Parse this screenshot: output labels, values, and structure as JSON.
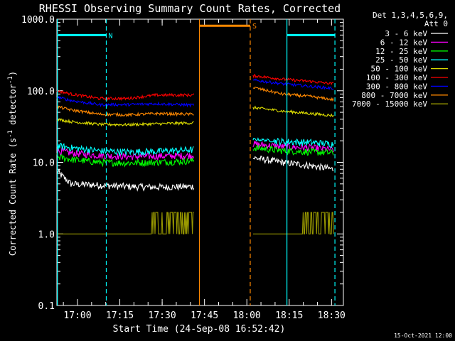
{
  "chart_data": {
    "type": "line",
    "title": "RHESSI Observing Summary Count Rates, Corrected",
    "xlabel": "Start Time (24-Sep-08 16:52:42)",
    "ylabel_main": "Corrected Count Rate (s",
    "ylabel_sup1": "-1",
    "ylabel_mid": " detector",
    "ylabel_sup2": "-1",
    "ylabel_end": ")",
    "yscale": "log",
    "ylim": [
      0.1,
      1000
    ],
    "x_unit": "minutes since 16:52:42",
    "xlim": [
      0,
      101.5
    ],
    "x_ticks": [
      {
        "t": 7.3,
        "label": "17:00"
      },
      {
        "t": 22.3,
        "label": "17:15"
      },
      {
        "t": 37.3,
        "label": "17:30"
      },
      {
        "t": 52.3,
        "label": "17:45"
      },
      {
        "t": 67.3,
        "label": "18:00"
      },
      {
        "t": 82.3,
        "label": "18:15"
      },
      {
        "t": 97.3,
        "label": "18:30"
      }
    ],
    "y_ticks": [
      {
        "v": 0.1,
        "label": "0.1"
      },
      {
        "v": 1,
        "label": "1.0"
      },
      {
        "v": 10,
        "label": "10.0"
      },
      {
        "v": 100,
        "label": "100.0"
      },
      {
        "v": 1000,
        "label": "1000.0"
      }
    ],
    "legend": {
      "header1": "Det 1,3,4,5,6,9,",
      "header2": "Att 0",
      "placement": "right"
    },
    "segments": [
      [
        0,
        48.5
      ],
      [
        69.5,
        98
      ]
    ],
    "series": [
      {
        "name": "3 - 6 keV",
        "color": "#ffffff",
        "values": [
          [
            0,
            7.5
          ],
          [
            5,
            5.0
          ],
          [
            15,
            4.8
          ],
          [
            25,
            4.6
          ],
          [
            35,
            4.5
          ],
          [
            48,
            4.6
          ],
          [
            70,
            11.5
          ],
          [
            80,
            10.0
          ],
          [
            90,
            9.0
          ],
          [
            98,
            8.0
          ]
        ]
      },
      {
        "name": "6 - 12 keV",
        "color": "#ff00ff",
        "values": [
          [
            0,
            14.5
          ],
          [
            5,
            13.5
          ],
          [
            15,
            12.5
          ],
          [
            25,
            12.0
          ],
          [
            35,
            12.2
          ],
          [
            48,
            12.5
          ],
          [
            70,
            18.0
          ],
          [
            80,
            16.5
          ],
          [
            90,
            16.0
          ],
          [
            98,
            15.0
          ]
        ]
      },
      {
        "name": "12 - 25 keV",
        "color": "#00ff00",
        "values": [
          [
            0,
            12.0
          ],
          [
            5,
            11.0
          ],
          [
            15,
            10.0
          ],
          [
            25,
            9.8
          ],
          [
            35,
            10.0
          ],
          [
            48,
            10.5
          ],
          [
            70,
            16.0
          ],
          [
            80,
            14.5
          ],
          [
            90,
            14.0
          ],
          [
            98,
            13.5
          ]
        ]
      },
      {
        "name": "25 - 50 keV",
        "color": "#00ffff",
        "values": [
          [
            0,
            17.0
          ],
          [
            5,
            16.0
          ],
          [
            15,
            14.5
          ],
          [
            25,
            14.0
          ],
          [
            35,
            14.2
          ],
          [
            48,
            15.0
          ],
          [
            70,
            21.0
          ],
          [
            80,
            19.5
          ],
          [
            90,
            19.0
          ],
          [
            98,
            18.0
          ]
        ]
      },
      {
        "name": "50 - 100 keV",
        "color": "#dddd00",
        "values": [
          [
            0,
            40.0
          ],
          [
            5,
            37.0
          ],
          [
            15,
            34.0
          ],
          [
            25,
            33.5
          ],
          [
            35,
            34.5
          ],
          [
            48,
            35.5
          ],
          [
            70,
            58.0
          ],
          [
            80,
            52.0
          ],
          [
            90,
            48.0
          ],
          [
            98,
            45.0
          ]
        ]
      },
      {
        "name": "100 - 300 keV",
        "color": "#ff0000",
        "values": [
          [
            0,
            100.0
          ],
          [
            5,
            90.0
          ],
          [
            15,
            78.0
          ],
          [
            25,
            78.0
          ],
          [
            35,
            87.0
          ],
          [
            48,
            87.0
          ],
          [
            70,
            162.0
          ],
          [
            80,
            145.0
          ],
          [
            90,
            135.0
          ],
          [
            98,
            125.0
          ]
        ]
      },
      {
        "name": "300 - 800 keV",
        "color": "#0000ff",
        "values": [
          [
            0,
            82.0
          ],
          [
            5,
            73.0
          ],
          [
            15,
            64.0
          ],
          [
            25,
            64.0
          ],
          [
            35,
            66.0
          ],
          [
            48,
            63.0
          ],
          [
            70,
            140.0
          ],
          [
            80,
            125.0
          ],
          [
            90,
            115.0
          ],
          [
            98,
            108.0
          ]
        ]
      },
      {
        "name": "800 - 7000 keV",
        "color": "#ff8800",
        "values": [
          [
            0,
            60.0
          ],
          [
            5,
            54.0
          ],
          [
            15,
            47.0
          ],
          [
            25,
            46.0
          ],
          [
            35,
            48.0
          ],
          [
            48,
            47.0
          ],
          [
            70,
            110.0
          ],
          [
            80,
            90.0
          ],
          [
            90,
            83.0
          ],
          [
            98,
            75.0
          ]
        ]
      },
      {
        "name": "7000 - 15000 keV",
        "color": "#999900",
        "values": [
          [
            0,
            1.0
          ],
          [
            33,
            1.0
          ],
          [
            34,
            1.4
          ],
          [
            48,
            1.6
          ],
          [
            70,
            1.0
          ],
          [
            85,
            1.0
          ],
          [
            87,
            1.6
          ],
          [
            98,
            1.5
          ]
        ]
      }
    ],
    "annotations": [
      {
        "type": "band",
        "color": "#00ffff",
        "label": "N",
        "t0": 0.5,
        "t1": 17.5,
        "y": 600,
        "dashed_at": 17.5
      },
      {
        "type": "band",
        "color": "#ff8800",
        "label": "S",
        "t0": 50.5,
        "t1": 68.5,
        "y": 810,
        "dashed_at": 68.5
      },
      {
        "type": "band",
        "color": "#00ffff",
        "label": "",
        "t0": 81.5,
        "t1": 98.5,
        "y": 600,
        "dashed_at": 98.5
      }
    ],
    "vlines": [
      {
        "t": 0.2,
        "color": "#00ffff",
        "dashed": false
      },
      {
        "t": 17.5,
        "color": "#00ffff",
        "dashed": true
      },
      {
        "t": 50.5,
        "color": "#ff8800",
        "dashed": false
      },
      {
        "t": 68.5,
        "color": "#ff8800",
        "dashed": true
      },
      {
        "t": 81.5,
        "color": "#00ffff",
        "dashed": false
      },
      {
        "t": 98.5,
        "color": "#00ffff",
        "dashed": true
      }
    ]
  },
  "footer_date": "15-Oct-2021 12:00"
}
